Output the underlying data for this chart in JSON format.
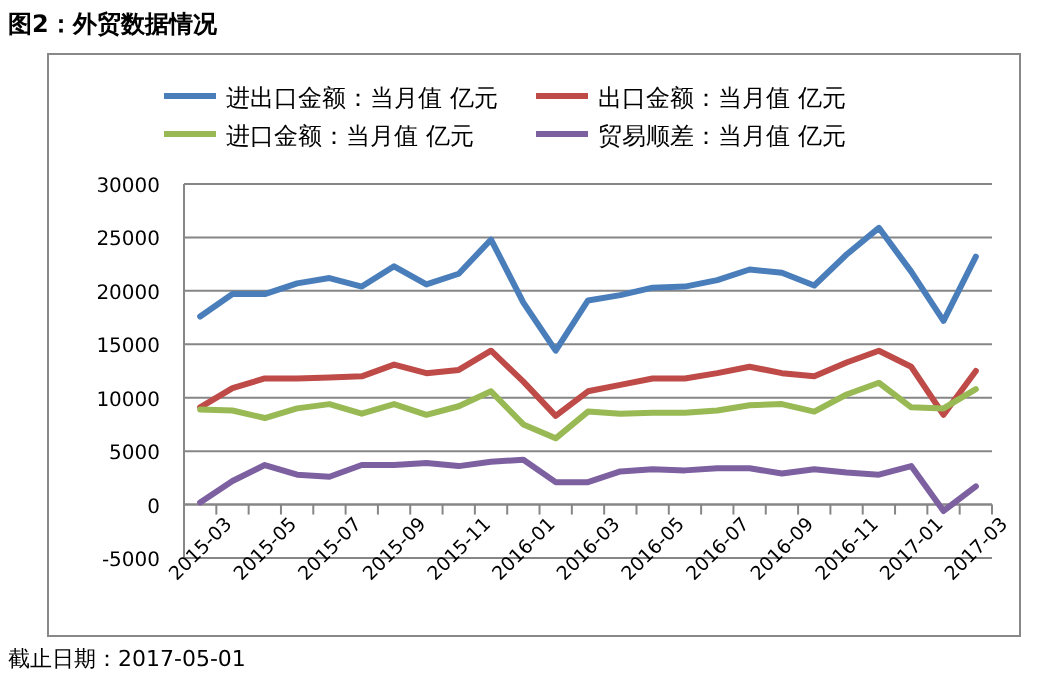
{
  "chart_data": {
    "type": "line",
    "title": "图2：外贸数据情况",
    "categories": [
      "2015-03",
      null,
      "2015-05",
      null,
      "2015-07",
      null,
      "2015-09",
      null,
      "2015-11",
      null,
      "2016-01",
      null,
      "2016-03",
      null,
      "2016-05",
      null,
      "2016-07",
      null,
      "2016-09",
      null,
      "2016-11",
      null,
      "2017-01",
      null,
      "2017-03"
    ],
    "series": [
      {
        "name": "进出口金额：当月值 亿元",
        "color": "#4a7ebb",
        "values": [
          17600,
          19700,
          19700,
          20700,
          21200,
          20400,
          22300,
          20600,
          21600,
          24800,
          18900,
          14400,
          19100,
          19600,
          20300,
          20400,
          21000,
          22000,
          21700,
          20500,
          23400,
          25900,
          21800,
          17200,
          23200
        ]
      },
      {
        "name": "出口金额：当月值 亿元",
        "color": "#be4b48",
        "values": [
          9100,
          10900,
          11800,
          11800,
          11900,
          12000,
          13100,
          12300,
          12600,
          14400,
          11500,
          8300,
          10600,
          11200,
          11800,
          11800,
          12300,
          12900,
          12300,
          12000,
          13300,
          14400,
          12900,
          8400,
          12500
        ]
      },
      {
        "name": "进口金额：当月值 亿元",
        "color": "#98b954",
        "values": [
          8900,
          8800,
          8100,
          9000,
          9400,
          8500,
          9400,
          8400,
          9200,
          10600,
          7500,
          6200,
          8700,
          8500,
          8600,
          8600,
          8800,
          9300,
          9400,
          8700,
          10300,
          11400,
          9100,
          9000,
          10800
        ]
      },
      {
        "name": "贸易顺差：当月值 亿元",
        "color": "#7d60a0",
        "values": [
          200,
          2200,
          3700,
          2800,
          2600,
          3700,
          3700,
          3900,
          3600,
          4000,
          4200,
          2100,
          2100,
          3100,
          3300,
          3200,
          3400,
          3400,
          2900,
          3300,
          3000,
          2800,
          3600,
          -600,
          1700
        ]
      }
    ],
    "ylim": [
      -5000,
      30000
    ],
    "yticks": [
      -5000,
      0,
      5000,
      10000,
      15000,
      20000,
      25000,
      30000
    ],
    "grid": "y",
    "legend": "top",
    "marker": "none",
    "line_style": "solid",
    "annotations": [
      "截止日期：2017-05-01"
    ]
  }
}
